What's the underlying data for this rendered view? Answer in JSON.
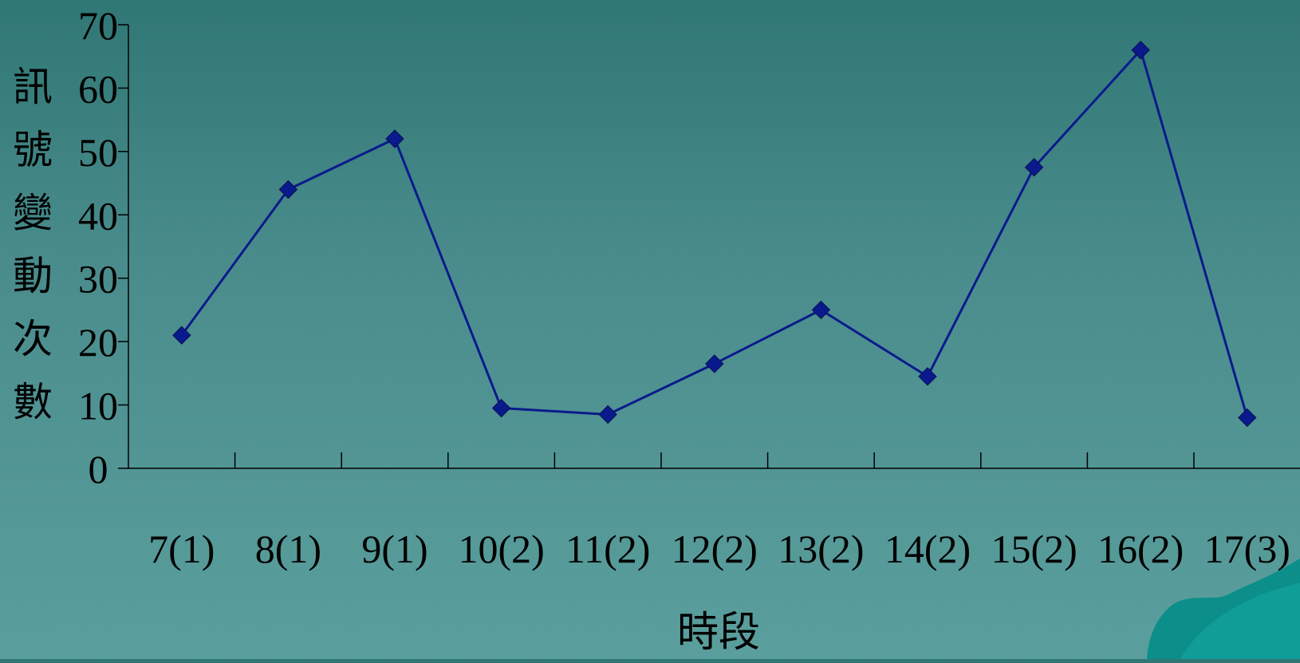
{
  "chart_data": {
    "type": "line",
    "xlabel": "時段",
    "ylabel": "訊號變動次數",
    "categories": [
      "7(1)",
      "8(1)",
      "9(1)",
      "10(2)",
      "11(2)",
      "12(2)",
      "13(2)",
      "14(2)",
      "15(2)",
      "16(2)",
      "17(3)"
    ],
    "values": [
      21,
      44,
      52,
      9.5,
      8.5,
      16.5,
      25,
      14.5,
      47.5,
      66,
      8
    ],
    "ylim": [
      0,
      70
    ],
    "yticks": [
      0,
      10,
      20,
      30,
      40,
      50,
      60,
      70
    ],
    "grid": false,
    "legend": "none",
    "colors": {
      "series": "#0a1a8c",
      "marker": "#0a1a8c",
      "axis": "#000000",
      "background": "#4a8c8c"
    }
  },
  "decoration": {
    "corner": "teal-swoosh"
  }
}
